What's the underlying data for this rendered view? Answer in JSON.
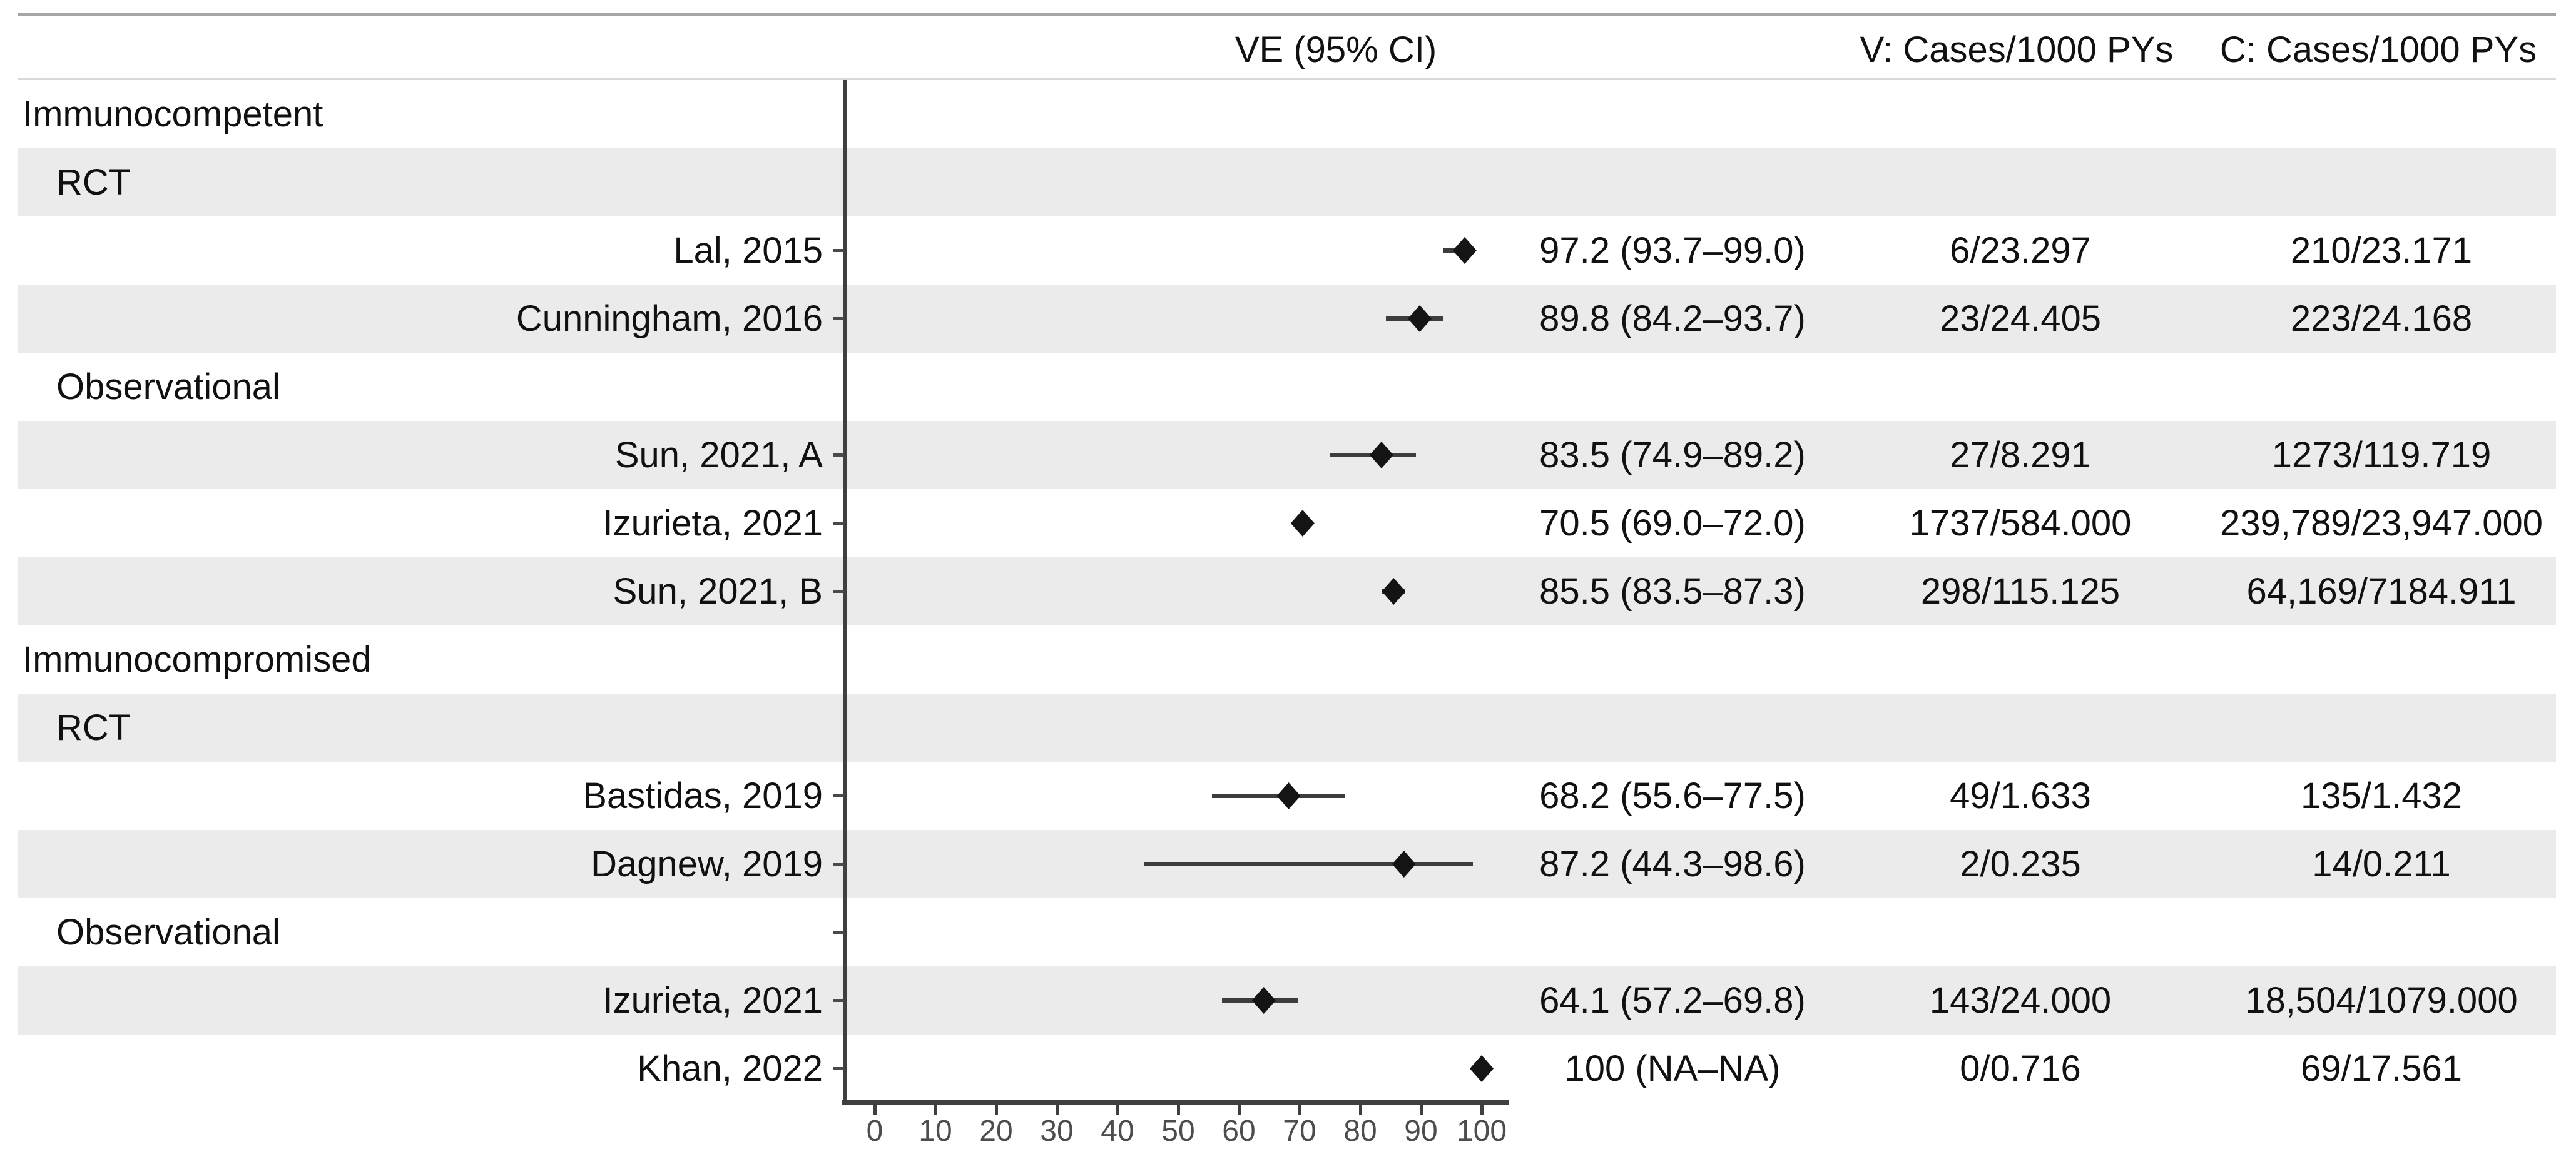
{
  "chart_data": {
    "type": "forest",
    "title": "",
    "columns": {
      "ve_ci": "VE (95% CI)",
      "v": "V: Cases/1000 PYs",
      "c": "C: Cases/1000 PYs"
    },
    "x_axis": {
      "range": [
        0,
        100
      ],
      "ticks": [
        0,
        10,
        20,
        30,
        40,
        50,
        60,
        70,
        80,
        90,
        100
      ]
    },
    "marker_color": "#141414",
    "whisker_color": "#3d3d3d",
    "band_color": "#ebebeb",
    "rows": [
      {
        "type": "group",
        "label": "Immunocompetent",
        "shaded": false,
        "axis_tick": false
      },
      {
        "type": "subgroup",
        "label": "RCT",
        "shaded": true,
        "axis_tick": false
      },
      {
        "type": "study",
        "label": "Lal, 2015",
        "shaded": false,
        "axis_tick": true,
        "ve": 97.2,
        "ci_lo": 93.7,
        "ci_hi": 99.0,
        "ve_ci": "97.2 (93.7–99.0)",
        "v": "6/23.297",
        "c": "210/23.171"
      },
      {
        "type": "study",
        "label": "Cunningham, 2016",
        "shaded": true,
        "axis_tick": true,
        "ve": 89.8,
        "ci_lo": 84.2,
        "ci_hi": 93.7,
        "ve_ci": "89.8 (84.2–93.7)",
        "v": "23/24.405",
        "c": "223/24.168"
      },
      {
        "type": "subgroup",
        "label": "Observational",
        "shaded": false,
        "axis_tick": false
      },
      {
        "type": "study",
        "label": "Sun, 2021, A",
        "shaded": true,
        "axis_tick": true,
        "ve": 83.5,
        "ci_lo": 74.9,
        "ci_hi": 89.2,
        "ve_ci": "83.5 (74.9–89.2)",
        "v": "27/8.291",
        "c": "1273/119.719"
      },
      {
        "type": "study",
        "label": "Izurieta, 2021",
        "shaded": false,
        "axis_tick": true,
        "ve": 70.5,
        "ci_lo": 69.0,
        "ci_hi": 72.0,
        "ve_ci": "70.5 (69.0–72.0)",
        "v": "1737/584.000",
        "c": "239,789/23,947.000"
      },
      {
        "type": "study",
        "label": "Sun, 2021, B",
        "shaded": true,
        "axis_tick": true,
        "ve": 85.5,
        "ci_lo": 83.5,
        "ci_hi": 87.3,
        "ve_ci": "85.5 (83.5–87.3)",
        "v": "298/115.125",
        "c": "64,169/7184.911"
      },
      {
        "type": "group",
        "label": "Immunocompromised",
        "shaded": false,
        "axis_tick": false
      },
      {
        "type": "subgroup",
        "label": "RCT",
        "shaded": true,
        "axis_tick": false
      },
      {
        "type": "study",
        "label": "Bastidas, 2019",
        "shaded": false,
        "axis_tick": true,
        "ve": 68.2,
        "ci_lo": 55.6,
        "ci_hi": 77.5,
        "ve_ci": "68.2 (55.6–77.5)",
        "v": "49/1.633",
        "c": "135/1.432"
      },
      {
        "type": "study",
        "label": "Dagnew, 2019",
        "shaded": true,
        "axis_tick": true,
        "ve": 87.2,
        "ci_lo": 44.3,
        "ci_hi": 98.6,
        "ve_ci": "87.2 (44.3–98.6)",
        "v": "2/0.235",
        "c": "14/0.211"
      },
      {
        "type": "subgroup",
        "label": "Observational",
        "shaded": false,
        "axis_tick": true
      },
      {
        "type": "study",
        "label": "Izurieta, 2021",
        "shaded": true,
        "axis_tick": true,
        "ve": 64.1,
        "ci_lo": 57.2,
        "ci_hi": 69.8,
        "ve_ci": "64.1 (57.2–69.8)",
        "v": "143/24.000",
        "c": "18,504/1079.000"
      },
      {
        "type": "study",
        "label": "Khan, 2022",
        "shaded": false,
        "axis_tick": true,
        "ve": 100,
        "ci_lo": null,
        "ci_hi": null,
        "ve_ci": "100 (NA–NA)",
        "v": "0/0.716",
        "c": "69/17.561"
      }
    ]
  }
}
